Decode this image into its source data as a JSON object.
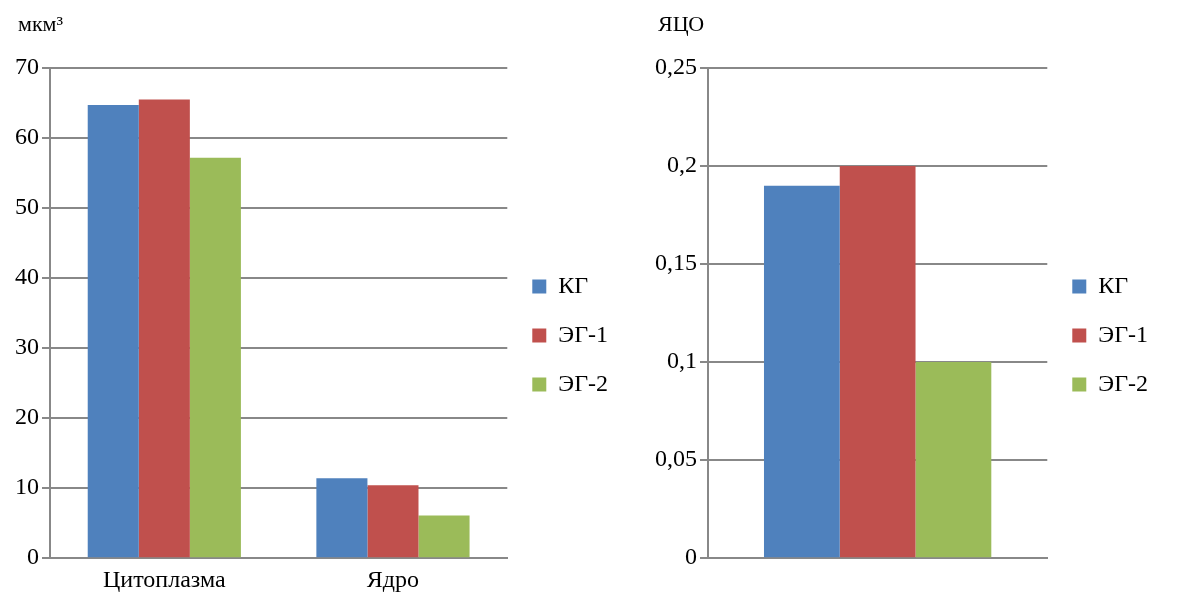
{
  "chart_data": [
    {
      "type": "bar",
      "ylabel": "мкм³",
      "categories": [
        "Цитоплазма",
        "Ядро"
      ],
      "series": [
        {
          "name": "КГ",
          "color": "#4f81bd",
          "values": [
            64.7,
            11.4
          ]
        },
        {
          "name": "ЭГ-1",
          "color": "#c0504d",
          "values": [
            65.5,
            10.4
          ]
        },
        {
          "name": "ЭГ-2",
          "color": "#9bbb59",
          "values": [
            57.2,
            6.1
          ]
        }
      ],
      "ylim": [
        0,
        70
      ],
      "yticks": [
        0,
        10,
        20,
        30,
        40,
        50,
        60,
        70
      ],
      "grid": "y",
      "legend": "right"
    },
    {
      "type": "bar",
      "ylabel": "ЯЦО",
      "categories": [
        null
      ],
      "series": [
        {
          "name": "КГ",
          "color": "#4f81bd",
          "values": [
            0.19
          ]
        },
        {
          "name": "ЭГ-1",
          "color": "#c0504d",
          "values": [
            0.2
          ]
        },
        {
          "name": "ЭГ-2",
          "color": "#9bbb59",
          "values": [
            0.1
          ]
        }
      ],
      "ylim": [
        0,
        0.25
      ],
      "yticks": [
        {
          "value": 0,
          "label": "0"
        },
        {
          "value": 0.05,
          "label": "0,05"
        },
        {
          "value": 0.1,
          "label": "0,1"
        },
        {
          "value": 0.15,
          "label": "0,15"
        },
        {
          "value": 0.2,
          "label": "0,2"
        },
        {
          "value": 0.25,
          "label": "0,25"
        }
      ],
      "grid": "y",
      "legend": "right"
    }
  ]
}
